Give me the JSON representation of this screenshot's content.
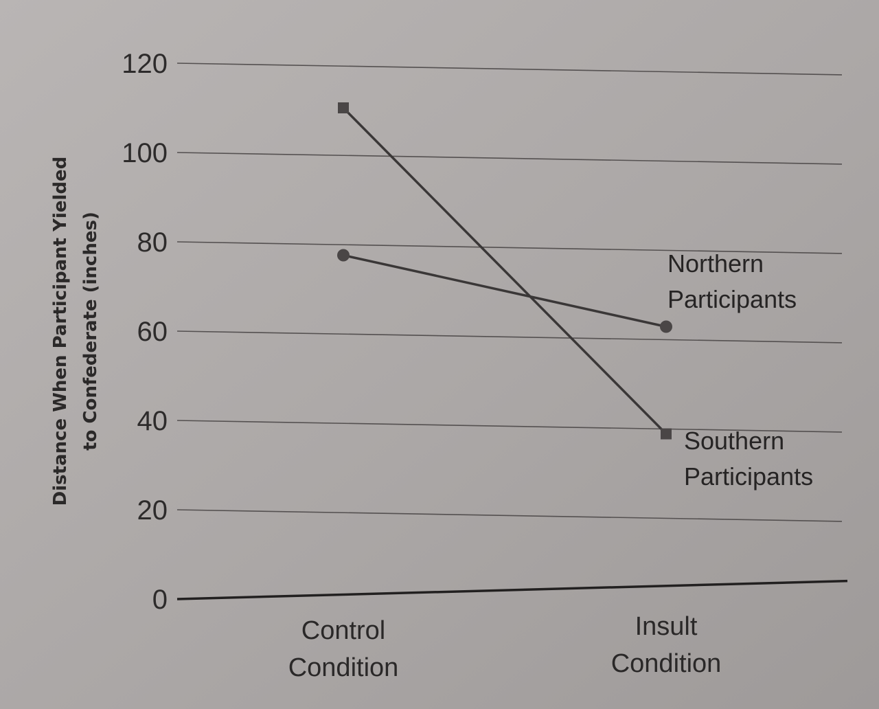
{
  "chart_data": {
    "type": "line",
    "categories": [
      "Control\nCondition",
      "Insult\nCondition"
    ],
    "series": [
      {
        "name": "Northern\nParticipants",
        "values": [
          77,
          61
        ],
        "marker": "circle"
      },
      {
        "name": "Southern\nParticipants",
        "values": [
          110,
          37
        ],
        "marker": "square"
      }
    ],
    "ylabel": "Distance When Participant Yielded\nto Confederate (inches)",
    "xlabel": "",
    "ylim": [
      0,
      120
    ],
    "yticks": [
      0,
      20,
      40,
      60,
      80,
      100,
      120
    ],
    "grid": true,
    "legend": "direct labels at right end of each line",
    "colors": {
      "background": "#aeaaa9",
      "line": "#3a3737",
      "marker": "#4a4646",
      "grid": "#545050"
    }
  }
}
